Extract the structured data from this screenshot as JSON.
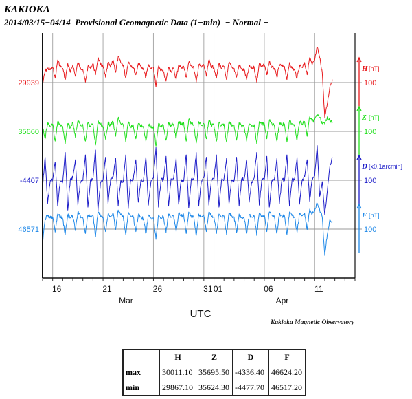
{
  "header": {
    "title": "KAKIOKA",
    "subtitle": "2014/03/15−04/14  Provisional Geomagnetic Data (1−min)  − Normal −"
  },
  "chart_data": {
    "type": "line",
    "title": "KAKIOKA",
    "xlabel": "UTC",
    "x_start": "2014-03-15 00:00",
    "x_step_days": 0.25,
    "xlim_days": [
      0,
      31
    ],
    "x_ticks": [
      {
        "day": 1,
        "label": "16"
      },
      {
        "day": 6,
        "label": "21"
      },
      {
        "day": 11,
        "label": "26"
      },
      {
        "day": 16,
        "label": "31"
      },
      {
        "day": 17,
        "label": "01"
      },
      {
        "day": 22,
        "label": "06"
      },
      {
        "day": 27,
        "label": "11"
      }
    ],
    "month_labels": [
      {
        "day": 8,
        "label": "Mar"
      },
      {
        "day": 23.5,
        "label": "Apr"
      }
    ],
    "grid": true,
    "credit": "Kakioka Magnetic Observatory",
    "series": [
      {
        "name": "H",
        "unit": "[nT]",
        "baseline": 29939,
        "scale_label": "100",
        "scale": 100,
        "color": "#e8191c",
        "values": [
          29935,
          29962,
          29968,
          29965,
          29970,
          29948,
          29985,
          29972,
          29968,
          29945,
          29978,
          29960,
          29975,
          29952,
          29980,
          29970,
          29965,
          29940,
          29972,
          29968,
          29978,
          29955,
          29990,
          29975,
          29972,
          29950,
          29980,
          29970,
          29985,
          29960,
          29992,
          29980,
          29975,
          29948,
          29982,
          29975,
          29970,
          29955,
          29978,
          29972,
          29965,
          29950,
          29975,
          29968,
          29970,
          29930,
          29972,
          29965,
          29960,
          29942,
          29970,
          29962,
          29968,
          29945,
          29975,
          29970,
          29972,
          29950,
          29980,
          29975,
          29968,
          29940,
          29976,
          29970,
          29975,
          29952,
          29985,
          29972,
          29970,
          29948,
          29978,
          29968,
          29972,
          29945,
          29980,
          29970,
          29968,
          29950,
          29975,
          29966,
          29965,
          29945,
          29972,
          29968,
          29970,
          29940,
          29978,
          29972,
          29975,
          29955,
          29982,
          29970,
          29968,
          29950,
          29975,
          29972,
          29972,
          29945,
          29980,
          29968,
          29965,
          29948,
          29975,
          29970,
          29980,
          29955,
          29990,
          29975,
          29985,
          30011,
          29990,
          29960,
          29867,
          29895,
          29930,
          29945
        ]
      },
      {
        "name": "Z",
        "unit": "[nT]",
        "baseline": 35660,
        "scale_label": "100",
        "scale": 100,
        "color": "#22e01e",
        "values": [
          35672,
          35645,
          35678,
          35670,
          35675,
          35640,
          35680,
          35672,
          35670,
          35635,
          35676,
          35668,
          35678,
          35648,
          35682,
          35674,
          35672,
          35640,
          35678,
          35670,
          35676,
          35632,
          35680,
          35675,
          35670,
          35644,
          35678,
          35672,
          35680,
          35650,
          35688,
          35676,
          35674,
          35638,
          35680,
          35670,
          35672,
          35645,
          35676,
          35672,
          35668,
          35640,
          35674,
          35668,
          35670,
          35630,
          35676,
          35670,
          35672,
          35642,
          35678,
          35672,
          35675,
          35645,
          35680,
          35674,
          35678,
          35640,
          35684,
          35676,
          35674,
          35636,
          35680,
          35672,
          35676,
          35645,
          35682,
          35674,
          35672,
          35640,
          35678,
          35672,
          35675,
          35638,
          35680,
          35674,
          35672,
          35642,
          35678,
          35670,
          35670,
          35640,
          35676,
          35672,
          35674,
          35635,
          35680,
          35674,
          35676,
          35645,
          35682,
          35676,
          35672,
          35640,
          35678,
          35674,
          35675,
          35638,
          35682,
          35676,
          35674,
          35642,
          35680,
          35675,
          35680,
          35650,
          35690,
          35680,
          35684,
          35695,
          35688,
          35676,
          35675,
          35690,
          35682,
          35678
        ]
      },
      {
        "name": "D",
        "unit": "[x0.1arcmin]",
        "baseline": -4407,
        "scale_label": "100",
        "scale": 100,
        "color": "#1c1cc8",
        "values": [
          -4420,
          -4360,
          -4455,
          -4410,
          -4405,
          -4370,
          -4460,
          -4408,
          -4410,
          -4350,
          -4468,
          -4405,
          -4402,
          -4365,
          -4458,
          -4410,
          -4408,
          -4355,
          -4462,
          -4406,
          -4404,
          -4345,
          -4470,
          -4410,
          -4406,
          -4360,
          -4455,
          -4404,
          -4400,
          -4362,
          -4460,
          -4408,
          -4410,
          -4355,
          -4465,
          -4405,
          -4405,
          -4365,
          -4452,
          -4408,
          -4408,
          -4360,
          -4458,
          -4410,
          -4402,
          -4340,
          -4462,
          -4406,
          -4406,
          -4358,
          -4460,
          -4404,
          -4404,
          -4362,
          -4456,
          -4408,
          -4408,
          -4355,
          -4464,
          -4405,
          -4405,
          -4350,
          -4460,
          -4410,
          -4402,
          -4360,
          -4458,
          -4406,
          -4406,
          -4355,
          -4462,
          -4408,
          -4404,
          -4362,
          -4455,
          -4406,
          -4408,
          -4360,
          -4460,
          -4404,
          -4405,
          -4365,
          -4452,
          -4410,
          -4402,
          -4350,
          -4458,
          -4406,
          -4406,
          -4358,
          -4462,
          -4408,
          -4404,
          -4362,
          -4455,
          -4405,
          -4408,
          -4355,
          -4460,
          -4406,
          -4405,
          -4360,
          -4456,
          -4408,
          -4400,
          -4365,
          -4450,
          -4404,
          -4398,
          -4336,
          -4440,
          -4410,
          -4478,
          -4430,
          -4380,
          -4360
        ]
      },
      {
        "name": "F",
        "unit": "[nT]",
        "baseline": 46571,
        "scale_label": "100",
        "scale": 100,
        "color": "#1e88e8",
        "values": [
          46540,
          46592,
          46598,
          46594,
          46596,
          46565,
          46602,
          46596,
          46592,
          46560,
          46600,
          46594,
          46598,
          46568,
          46606,
          46598,
          46594,
          46562,
          46600,
          46596,
          46600,
          46555,
          46608,
          46598,
          46595,
          46566,
          46602,
          46596,
          46604,
          46570,
          46610,
          46600,
          46598,
          46560,
          46604,
          46596,
          46596,
          46566,
          46600,
          46596,
          46592,
          46562,
          46598,
          46594,
          46594,
          46550,
          46600,
          46594,
          46596,
          46564,
          46602,
          46596,
          46598,
          46566,
          46604,
          46598,
          46600,
          46562,
          46606,
          46598,
          46596,
          46558,
          46602,
          46596,
          46598,
          46566,
          46606,
          46598,
          46596,
          46562,
          46602,
          46596,
          46598,
          46560,
          46604,
          46598,
          46596,
          46564,
          46602,
          46594,
          46594,
          46562,
          46600,
          46596,
          46598,
          46558,
          46604,
          46598,
          46600,
          46566,
          46606,
          46600,
          46596,
          46562,
          46602,
          46598,
          46598,
          46560,
          46606,
          46598,
          46596,
          46564,
          46604,
          46598,
          46604,
          46570,
          46612,
          46602,
          46608,
          46624,
          46610,
          46596,
          46517,
          46560,
          46590,
          46585
        ]
      }
    ]
  },
  "stats_table": {
    "headers": [
      "",
      "H",
      "Z",
      "D",
      "F"
    ],
    "rows": [
      {
        "label": "max",
        "values": [
          "30011.10",
          "35695.50",
          "-4336.40",
          "46624.20"
        ]
      },
      {
        "label": "min",
        "values": [
          "29867.10",
          "35624.30",
          "-4477.70",
          "46517.20"
        ]
      }
    ]
  }
}
